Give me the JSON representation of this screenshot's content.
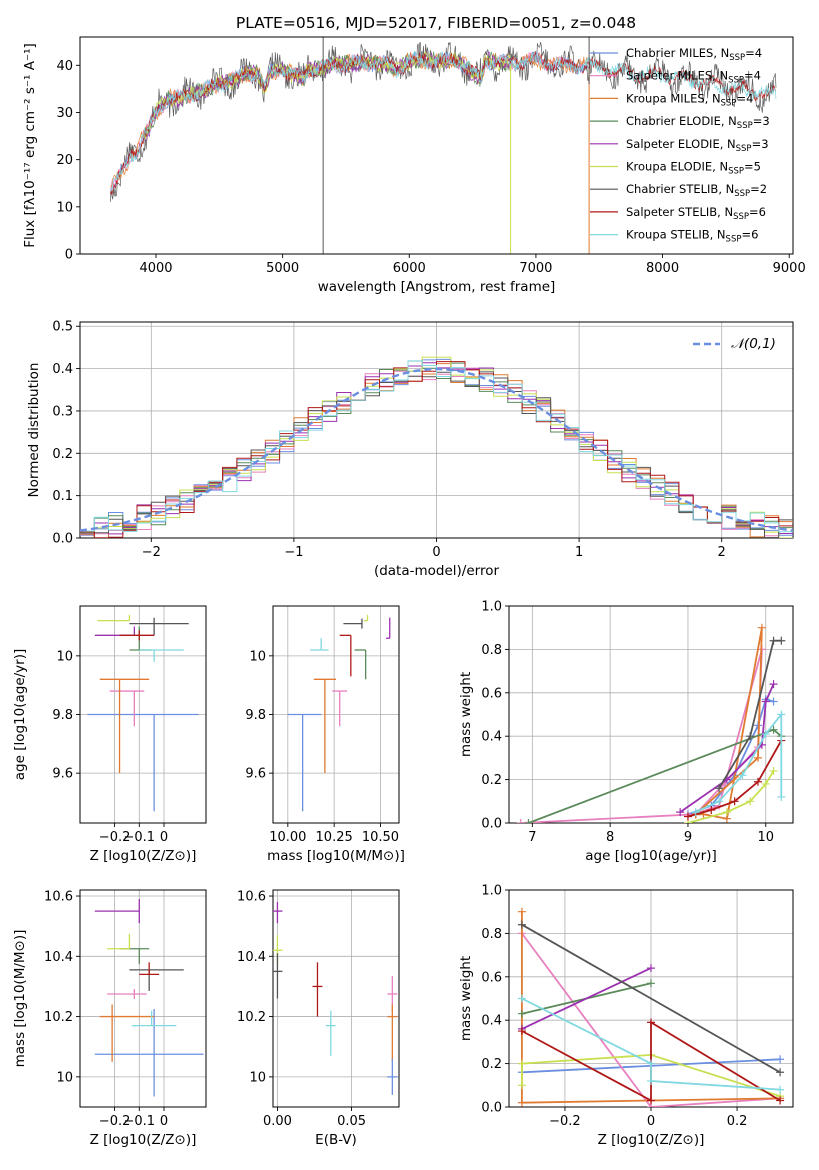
{
  "title": "PLATE=0516, MJD=52017, FIBERID=0051, z=0.048",
  "colors": {
    "Chabrier MILES": "#6b8fe0",
    "Salpeter MILES": "#e87fbf",
    "Kroupa MILES": "#e07a30",
    "Chabrier ELODIE": "#5a8a5a",
    "Salpeter ELODIE": "#9b30b0",
    "Kroupa ELODIE": "#c8e050",
    "Chabrier STELIB": "#555555",
    "Salpeter STELIB": "#b01818",
    "Kroupa STELIB": "#80d8e0"
  },
  "chart_data": [
    {
      "id": "spectrum",
      "type": "line",
      "xlabel": "wavelength [Angstrom, rest frame]",
      "ylabel": "Flux [fλ10⁻¹⁷ erg cm⁻² s⁻¹ A⁻¹]",
      "xlim": [
        3400,
        9030
      ],
      "ylim": [
        0,
        46
      ],
      "xticks": [
        4000,
        5000,
        6000,
        7000,
        8000,
        9000
      ],
      "yticks": [
        0,
        10,
        20,
        30,
        40
      ],
      "legend_position": "top-right",
      "legend": [
        {
          "name": "Chabrier MILES",
          "n": "4"
        },
        {
          "name": "Salpeter MILES",
          "n": "4"
        },
        {
          "name": "Kroupa MILES",
          "n": "4"
        },
        {
          "name": "Chabrier ELODIE",
          "n": "3"
        },
        {
          "name": "Salpeter ELODIE",
          "n": "3"
        },
        {
          "name": "Kroupa ELODIE",
          "n": "5"
        },
        {
          "name": "Chabrier STELIB",
          "n": "2"
        },
        {
          "name": "Salpeter STELIB",
          "n": "6"
        },
        {
          "name": "Kroupa STELIB",
          "n": "6"
        }
      ],
      "continuum": [
        [
          3640,
          14
        ],
        [
          3700,
          16
        ],
        [
          3750,
          18
        ],
        [
          3800,
          21
        ],
        [
          3850,
          22
        ],
        [
          3900,
          25
        ],
        [
          3950,
          27
        ],
        [
          4000,
          30
        ],
        [
          4100,
          33
        ],
        [
          4200,
          33
        ],
        [
          4300,
          34
        ],
        [
          4400,
          35
        ],
        [
          4500,
          36
        ],
        [
          4600,
          37
        ],
        [
          4700,
          38
        ],
        [
          4800,
          38.5
        ],
        [
          4860,
          35
        ],
        [
          4900,
          38.5
        ],
        [
          5000,
          39
        ],
        [
          5100,
          38
        ],
        [
          5170,
          37
        ],
        [
          5200,
          39
        ],
        [
          5400,
          40
        ],
        [
          5600,
          40.5
        ],
        [
          5800,
          40.5
        ],
        [
          5900,
          39
        ],
        [
          6000,
          41
        ],
        [
          6200,
          41
        ],
        [
          6400,
          41
        ],
        [
          6563,
          37
        ],
        [
          6600,
          41
        ],
        [
          6800,
          40.5
        ],
        [
          7000,
          41
        ],
        [
          7200,
          40
        ],
        [
          7400,
          40
        ],
        [
          7600,
          39
        ],
        [
          7800,
          38
        ],
        [
          8000,
          38
        ],
        [
          8200,
          37
        ],
        [
          8400,
          36
        ],
        [
          8600,
          35
        ],
        [
          8800,
          34
        ]
      ],
      "dropouts": [
        {
          "x": 5320,
          "color": "#555555",
          "ymin": 0,
          "ymax": 46
        },
        {
          "x": 6800,
          "color": "#c8e050",
          "ymin": 0,
          "ymax": 40
        },
        {
          "x": 7420,
          "color": "#e07a30",
          "ymin": 0,
          "ymax": 40
        },
        {
          "x": 7420,
          "color": "#555555",
          "ymin": 36,
          "ymax": 46
        }
      ]
    },
    {
      "id": "residuals",
      "type": "histogram",
      "xlabel": "(data-model)/error",
      "ylabel": "Normed distribution",
      "xlim": [
        -2.5,
        2.5
      ],
      "ylim": [
        0,
        0.51
      ],
      "xticks": [
        -2,
        -1,
        0,
        1,
        2
      ],
      "yticks": [
        0.0,
        0.1,
        0.2,
        0.3,
        0.4,
        0.5
      ],
      "bin_width": 0.1,
      "reference_label": "𝒩(0,1)",
      "legend_position": "top-right"
    },
    {
      "id": "age_vs_Z",
      "type": "scatter",
      "xlabel": "Z [log10(Z/Z⊙)]",
      "ylabel": "age  [log10(age/yr)]",
      "xlim": [
        -0.34,
        0.17
      ],
      "ylim": [
        9.43,
        10.17
      ],
      "xticks": [
        -0.2,
        -0.1,
        0.0
      ],
      "yticks": [
        9.6,
        9.8,
        10.0
      ],
      "points": [
        {
          "s": "Chabrier MILES",
          "x": -0.04,
          "y": 9.8,
          "xerr": [
            0.27,
            0.18
          ],
          "yerr": [
            0.33,
            0.0
          ]
        },
        {
          "s": "Salpeter MILES",
          "x": -0.12,
          "y": 9.88,
          "xerr": [
            0.1,
            0.04
          ],
          "yerr": [
            0.12,
            0.0
          ]
        },
        {
          "s": "Kroupa MILES",
          "x": -0.18,
          "y": 9.92,
          "xerr": [
            0.08,
            0.12
          ],
          "yerr": [
            0.32,
            0.0
          ]
        },
        {
          "s": "Chabrier ELODIE",
          "x": -0.1,
          "y": 10.02,
          "xerr": [
            0.04,
            0.05
          ],
          "yerr": [
            0.0,
            0.08
          ]
        },
        {
          "s": "Salpeter ELODIE",
          "x": -0.12,
          "y": 10.07,
          "xerr": [
            0.16,
            0.0
          ],
          "yerr": [
            0.0,
            0.03
          ]
        },
        {
          "s": "Kroupa ELODIE",
          "x": -0.14,
          "y": 10.12,
          "xerr": [
            0.13,
            0.0
          ],
          "yerr": [
            0.0,
            0.02
          ]
        },
        {
          "s": "Chabrier STELIB",
          "x": -0.04,
          "y": 10.11,
          "xerr": [
            0.1,
            0.14
          ],
          "yerr": [
            0.04,
            0.02
          ]
        },
        {
          "s": "Salpeter STELIB",
          "x": -0.1,
          "y": 10.07,
          "xerr": [
            0.08,
            0.06
          ],
          "yerr": [
            0.0,
            0.0
          ]
        },
        {
          "s": "Kroupa STELIB",
          "x": -0.04,
          "y": 10.02,
          "xerr": [
            0.06,
            0.12
          ],
          "yerr": [
            0.04,
            0.0
          ]
        }
      ]
    },
    {
      "id": "age_vs_mass",
      "type": "scatter",
      "xlabel": "mass [log10(M/M⊙)]",
      "xlim": [
        9.92,
        10.6
      ],
      "ylim": [
        9.43,
        10.17
      ],
      "xticks": [
        10.0,
        10.25,
        10.5
      ],
      "xtick_labels": [
        "10.00",
        "10.25",
        "10.50"
      ],
      "yticks": [
        9.6,
        9.8,
        10.0
      ],
      "points": [
        {
          "s": "Chabrier MILES",
          "x": 10.08,
          "y": 9.8,
          "xerr": [
            0.08,
            0.1
          ],
          "yerr": [
            0.33,
            0.0
          ]
        },
        {
          "s": "Salpeter MILES",
          "x": 10.28,
          "y": 9.88,
          "xerr": [
            0.04,
            0.04
          ],
          "yerr": [
            0.12,
            0.0
          ]
        },
        {
          "s": "Kroupa MILES",
          "x": 10.2,
          "y": 9.92,
          "xerr": [
            0.06,
            0.06
          ],
          "yerr": [
            0.32,
            0.0
          ]
        },
        {
          "s": "Chabrier ELODIE",
          "x": 10.42,
          "y": 10.02,
          "xerr": [
            0.06,
            0.0
          ],
          "yerr": [
            0.1,
            0.0
          ]
        },
        {
          "s": "Salpeter ELODIE",
          "x": 10.55,
          "y": 10.06,
          "xerr": [
            0.02,
            0.0
          ],
          "yerr": [
            0.0,
            0.07
          ]
        },
        {
          "s": "Kroupa ELODIE",
          "x": 10.43,
          "y": 10.12,
          "xerr": [
            0.02,
            0.0
          ],
          "yerr": [
            0.0,
            0.02
          ]
        },
        {
          "s": "Chabrier STELIB",
          "x": 10.4,
          "y": 10.11,
          "xerr": [
            0.1,
            0.0
          ],
          "yerr": [
            0.0,
            0.0
          ]
        },
        {
          "s": "Salpeter STELIB",
          "x": 10.34,
          "y": 10.07,
          "xerr": [
            0.06,
            0.0
          ],
          "yerr": [
            0.14,
            0.0
          ]
        },
        {
          "s": "Kroupa STELIB",
          "x": 10.18,
          "y": 10.02,
          "xerr": [
            0.06,
            0.04
          ],
          "yerr": [
            0.0,
            0.04
          ]
        }
      ]
    },
    {
      "id": "weight_vs_age",
      "type": "line",
      "xlabel": "age  [log10(age/yr)]",
      "ylabel": "mass weight",
      "xlim": [
        6.7,
        10.35
      ],
      "ylim": [
        0,
        1.0
      ],
      "xticks": [
        7,
        8,
        9,
        10
      ],
      "yticks": [
        0.0,
        0.2,
        0.4,
        0.6,
        0.8,
        1.0
      ],
      "series": [
        {
          "s": "Chabrier MILES",
          "x": [
            9.0,
            9.3,
            9.6,
            9.9,
            10.0,
            10.1
          ],
          "y": [
            0.04,
            0.08,
            0.22,
            0.45,
            0.57,
            0.56
          ]
        },
        {
          "s": "Salpeter MILES",
          "x": [
            9.0,
            9.4,
            9.95,
            9.9,
            9.1,
            6.85
          ],
          "y": [
            0.03,
            0.08,
            0.8,
            0.35,
            0.04,
            0.0
          ]
        },
        {
          "s": "Kroupa MILES",
          "x": [
            9.1,
            9.2,
            9.5,
            9.95,
            9.9,
            9.1
          ],
          "y": [
            0.04,
            0.04,
            0.02,
            0.9,
            0.3,
            0.04
          ]
        },
        {
          "s": "Chabrier ELODIE",
          "x": [
            6.95,
            10.1,
            10.2
          ],
          "y": [
            0.0,
            0.43,
            0.4
          ]
        },
        {
          "s": "Salpeter ELODIE",
          "x": [
            8.9,
            9.5,
            9.95,
            10.0,
            10.1
          ],
          "y": [
            0.05,
            0.2,
            0.36,
            0.56,
            0.64
          ]
        },
        {
          "s": "Kroupa ELODIE",
          "x": [
            9.0,
            9.5,
            9.8,
            10.0,
            10.1
          ],
          "y": [
            0.0,
            0.05,
            0.1,
            0.18,
            0.24
          ]
        },
        {
          "s": "Chabrier STELIB",
          "x": [
            9.4,
            9.8,
            10.1,
            10.2
          ],
          "y": [
            0.16,
            0.4,
            0.84,
            0.84
          ]
        },
        {
          "s": "Salpeter STELIB",
          "x": [
            9.0,
            9.3,
            9.6,
            9.9,
            10.2
          ],
          "y": [
            0.03,
            0.06,
            0.1,
            0.19,
            0.38
          ]
        },
        {
          "s": "Kroupa STELIB",
          "x": [
            9.1,
            9.4,
            9.7,
            10.0,
            10.2,
            10.2
          ],
          "y": [
            0.05,
            0.1,
            0.22,
            0.41,
            0.5,
            0.12
          ]
        }
      ]
    },
    {
      "id": "mass_vs_Z",
      "type": "scatter",
      "xlabel": "Z [log10(Z/Z⊙)]",
      "ylabel": "mass [log10(M/M⊙)]",
      "xlim": [
        -0.34,
        0.17
      ],
      "ylim": [
        9.9,
        10.62
      ],
      "xticks": [
        -0.2,
        -0.1,
        0.0
      ],
      "yticks": [
        10.0,
        10.2,
        10.4,
        10.6
      ],
      "points": [
        {
          "s": "Chabrier MILES",
          "x": -0.04,
          "y": 10.075,
          "xerr": [
            0.24,
            0.2
          ],
          "yerr": [
            0.14,
            0.15
          ]
        },
        {
          "s": "Salpeter MILES",
          "x": -0.12,
          "y": 10.275,
          "xerr": [
            0.11,
            0.05
          ],
          "yerr": [
            0.0,
            0.0
          ]
        },
        {
          "s": "Kroupa MILES",
          "x": -0.21,
          "y": 10.2,
          "xerr": [
            0.05,
            0.17
          ],
          "yerr": [
            0.15,
            0.04
          ]
        },
        {
          "s": "Chabrier ELODIE",
          "x": -0.1,
          "y": 10.425,
          "xerr": [
            0.08,
            0.04
          ],
          "yerr": [
            0.05,
            0.0
          ]
        },
        {
          "s": "Salpeter ELODIE",
          "x": -0.1,
          "y": 10.55,
          "xerr": [
            0.18,
            0.0
          ],
          "yerr": [
            0.04,
            0.04
          ]
        },
        {
          "s": "Kroupa ELODIE",
          "x": -0.14,
          "y": 10.425,
          "xerr": [
            0.09,
            0.0
          ],
          "yerr": [
            0.0,
            0.05
          ]
        },
        {
          "s": "Chabrier STELIB",
          "x": -0.06,
          "y": 10.355,
          "xerr": [
            0.08,
            0.14
          ],
          "yerr": [
            0.07,
            0.0
          ]
        },
        {
          "s": "Salpeter STELIB",
          "x": -0.06,
          "y": 10.34,
          "xerr": [
            0.04,
            0.04
          ],
          "yerr": [
            0.0,
            0.04
          ]
        },
        {
          "s": "Kroupa STELIB",
          "x": -0.05,
          "y": 10.17,
          "xerr": [
            0.08,
            0.1
          ],
          "yerr": [
            0.0,
            0.05
          ]
        }
      ]
    },
    {
      "id": "mass_vs_EBV",
      "type": "scatter",
      "xlabel": "E(B-V)",
      "xlim": [
        -0.003,
        0.082
      ],
      "ylim": [
        9.9,
        10.62
      ],
      "xticks": [
        0.0,
        0.05
      ],
      "xtick_labels": [
        "0.00",
        "0.05"
      ],
      "yticks": [
        10.0,
        10.2,
        10.4,
        10.6
      ],
      "points": [
        {
          "s": "Salpeter ELODIE",
          "x": 0.0,
          "y": 10.55,
          "yerr": [
            0.04,
            0.03
          ]
        },
        {
          "s": "Kroupa ELODIE",
          "x": 0.0,
          "y": 10.42,
          "yerr": [
            0.05,
            0.05
          ]
        },
        {
          "s": "Chabrier STELIB",
          "x": 0.0,
          "y": 10.35,
          "yerr": [
            0.09,
            0.06
          ]
        },
        {
          "s": "Salpeter STELIB",
          "x": 0.027,
          "y": 10.3,
          "yerr": [
            0.1,
            0.08
          ]
        },
        {
          "s": "Kroupa STELIB",
          "x": 0.036,
          "y": 10.17,
          "yerr": [
            0.1,
            0.05
          ]
        },
        {
          "s": "Salpeter MILES",
          "x": 0.0775,
          "y": 10.275,
          "yerr": [
            0.06,
            0.06
          ]
        },
        {
          "s": "Kroupa MILES",
          "x": 0.0775,
          "y": 10.2,
          "yerr": [
            0.15,
            0.04
          ]
        },
        {
          "s": "Chabrier MILES",
          "x": 0.0775,
          "y": 10.0,
          "yerr": [
            0.06,
            0.06
          ]
        }
      ]
    },
    {
      "id": "weight_vs_Z",
      "type": "line",
      "xlabel": "Z [log10(Z/Z⊙)]",
      "ylabel": "mass weight",
      "xlim": [
        -0.33,
        0.33
      ],
      "ylim": [
        0,
        1.0
      ],
      "xticks": [
        -0.2,
        0.0,
        0.2
      ],
      "yticks": [
        0.0,
        0.2,
        0.4,
        0.6,
        0.8,
        1.0
      ],
      "series": [
        {
          "s": "Chabrier MILES",
          "x": [
            -0.3,
            0.3
          ],
          "y": [
            0.16,
            0.22
          ]
        },
        {
          "s": "Salpeter MILES",
          "x": [
            -0.3,
            0.0,
            0.3
          ],
          "y": [
            0.8,
            0.0,
            0.04
          ]
        },
        {
          "s": "Kroupa MILES",
          "x": [
            -0.3,
            -0.3,
            0.0,
            0.3
          ],
          "y": [
            0.9,
            0.02,
            0.03,
            0.04
          ]
        },
        {
          "s": "Chabrier ELODIE",
          "x": [
            -0.3,
            0.0
          ],
          "y": [
            0.43,
            0.57
          ]
        },
        {
          "s": "Salpeter ELODIE",
          "x": [
            -0.3,
            0.0
          ],
          "y": [
            0.36,
            0.64
          ]
        },
        {
          "s": "Kroupa ELODIE",
          "x": [
            -0.3,
            -0.3,
            0.0,
            0.3
          ],
          "y": [
            0.1,
            0.2,
            0.24,
            0.05
          ]
        },
        {
          "s": "Chabrier STELIB",
          "x": [
            -0.3,
            0.3
          ],
          "y": [
            0.84,
            0.16
          ]
        },
        {
          "s": "Salpeter STELIB",
          "x": [
            -0.3,
            0.0,
            0.0,
            0.3
          ],
          "y": [
            0.35,
            0.03,
            0.39,
            0.03
          ]
        },
        {
          "s": "Kroupa STELIB",
          "x": [
            -0.3,
            0.0,
            0.0,
            0.3
          ],
          "y": [
            0.5,
            0.2,
            0.12,
            0.08
          ]
        }
      ]
    }
  ]
}
